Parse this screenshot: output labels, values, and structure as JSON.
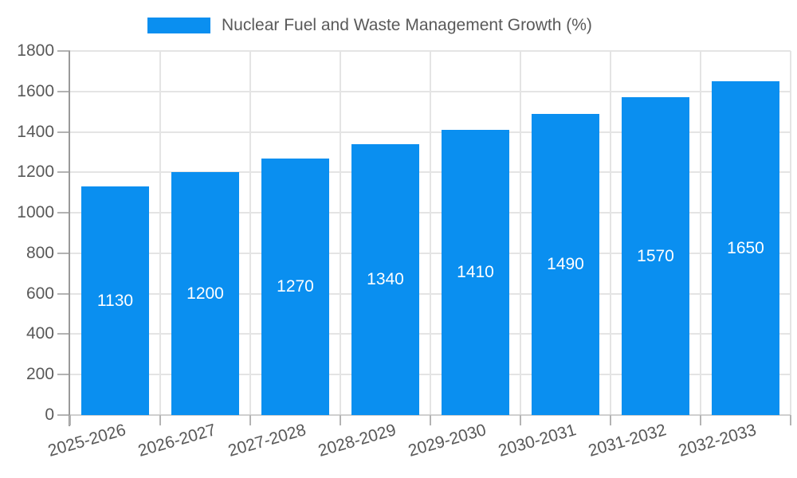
{
  "chart_data": {
    "type": "bar",
    "title": "Nuclear Fuel and Waste Management Growth (%)",
    "categories": [
      "2025-2026",
      "2026-2027",
      "2027-2028",
      "2028-2029",
      "2029-2030",
      "2030-2031",
      "2031-2032",
      "2032-2033"
    ],
    "values": [
      1130,
      1200,
      1270,
      1340,
      1410,
      1490,
      1570,
      1650
    ],
    "xlabel": "",
    "ylabel": "",
    "ylim": [
      0,
      1800
    ],
    "yticks": [
      0,
      200,
      400,
      600,
      800,
      1000,
      1200,
      1400,
      1600,
      1800
    ],
    "grid": "on",
    "legend_position": "top-center",
    "x_tick_rotation_deg": -16,
    "colors": {
      "bar": "#0a8ff0",
      "grid": "#e4e4e4",
      "axis_spine": "#999999",
      "tick": "#b3b3b3",
      "tick_label": "#595959",
      "bar_label": "#ffffff",
      "background": "#ffffff"
    }
  }
}
